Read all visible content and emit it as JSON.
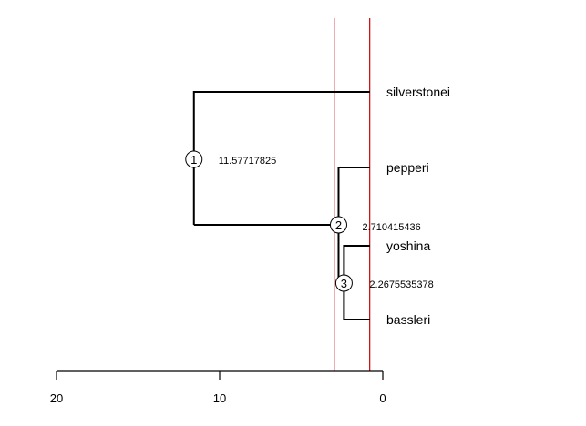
{
  "tree": {
    "tips": [
      {
        "id": "silverstonei",
        "label": "silverstonei"
      },
      {
        "id": "pepperi",
        "label": "pepperi"
      },
      {
        "id": "yoshina",
        "label": "yoshina"
      },
      {
        "id": "bassleri",
        "label": "bassleri"
      }
    ],
    "nodes": [
      {
        "id": "1",
        "label": "1",
        "age_value": "11.57717825",
        "age": 11.57717825
      },
      {
        "id": "2",
        "label": "2",
        "age_value": "2.710415436",
        "age": 2.710415436
      },
      {
        "id": "3",
        "label": "3",
        "age_value": "2.2675535378",
        "age": 2.2675535378
      }
    ]
  },
  "time_axis": {
    "range": [
      20,
      0
    ],
    "ticks": [
      {
        "value": 20,
        "label": "20"
      },
      {
        "value": 10,
        "label": "10"
      },
      {
        "value": 0,
        "label": "0"
      }
    ]
  },
  "reference_lines": {
    "color": "#cc0000",
    "values": [
      3.2,
      0.8
    ]
  },
  "colors": {
    "branch": "#000000",
    "background": "#ffffff"
  }
}
